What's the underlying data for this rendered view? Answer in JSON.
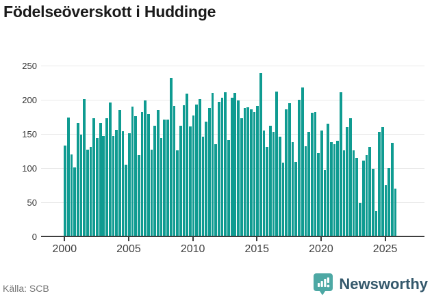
{
  "title": "Födelseöverskott i Huddinge",
  "source": "Källa: SCB",
  "brand": {
    "name": "Newsworthy",
    "logo_icon": "speech-bubble-bar-chart",
    "logo_color": "#4da8a4",
    "text_color": "#35596c"
  },
  "chart_data": {
    "type": "bar",
    "title": "Födelseöverskott i Huddinge",
    "xlabel": "",
    "ylabel": "",
    "frequency": "quarterly",
    "start_year": 2000,
    "end_year": 2025,
    "ylim": [
      0,
      250
    ],
    "y_tick_step": 50,
    "y_tick_labels": [
      "0",
      "50",
      "100",
      "150",
      "200",
      "250"
    ],
    "x_tick_years": [
      2000,
      2005,
      2010,
      2015,
      2020,
      2025
    ],
    "grid": "horizontal",
    "bar_color": "#0f9b91",
    "values": [
      133,
      174,
      120,
      101,
      166,
      149,
      201,
      127,
      131,
      173,
      144,
      166,
      147,
      173,
      196,
      147,
      156,
      185,
      154,
      105,
      151,
      190,
      176,
      119,
      182,
      199,
      179,
      127,
      162,
      185,
      144,
      171,
      171,
      232,
      191,
      126,
      162,
      192,
      209,
      161,
      177,
      193,
      201,
      146,
      168,
      188,
      210,
      135,
      197,
      203,
      211,
      141,
      203,
      210,
      199,
      173,
      188,
      189,
      186,
      182,
      191,
      239,
      155,
      131,
      162,
      153,
      212,
      146,
      108,
      186,
      195,
      138,
      109,
      200,
      218,
      132,
      153,
      181,
      182,
      122,
      155,
      97,
      165,
      138,
      135,
      140,
      211,
      126,
      160,
      173,
      126,
      115,
      49,
      111,
      119,
      131,
      99,
      37,
      153,
      160,
      75,
      100,
      137,
      70
    ]
  }
}
